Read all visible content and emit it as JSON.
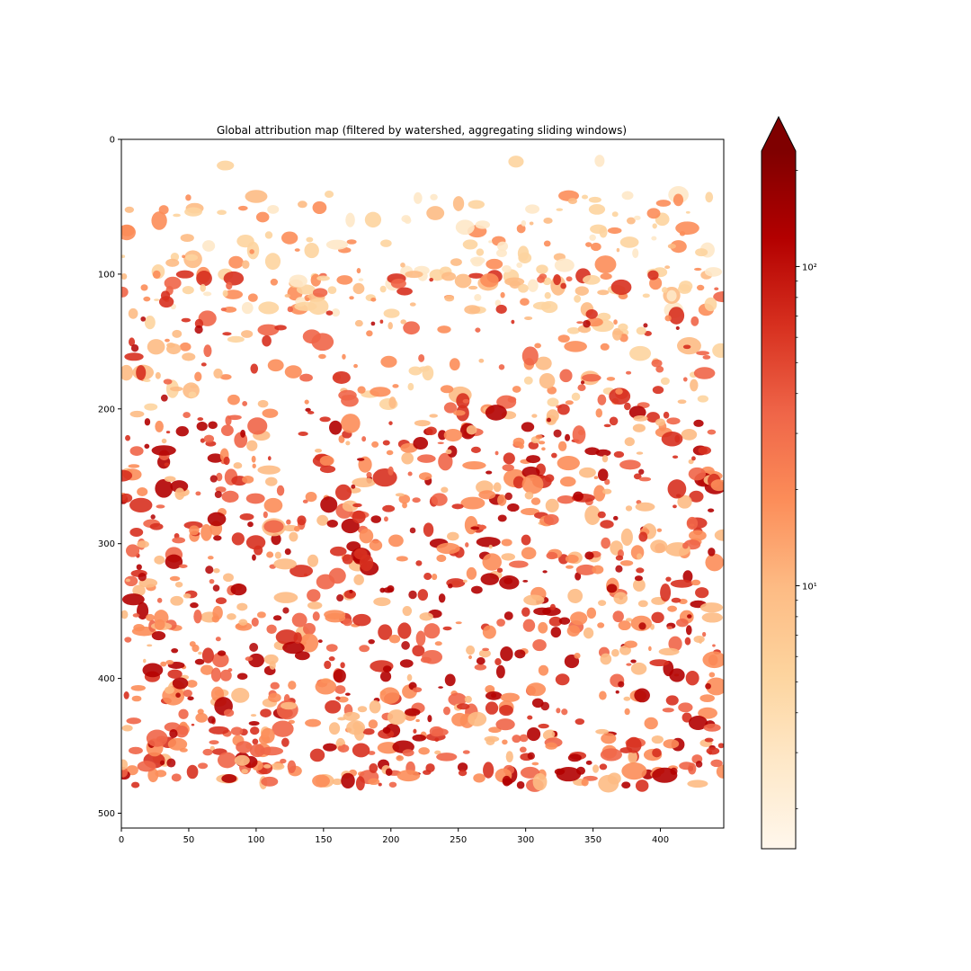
{
  "chart_data": {
    "type": "heatmap",
    "title": "Global attribution map (filtered by watershed, aggregating sliding windows)",
    "xlabel": "",
    "ylabel": "",
    "xlim": [
      0,
      447
    ],
    "ylim": [
      511,
      0
    ],
    "xticks": [
      0,
      50,
      100,
      150,
      200,
      250,
      300,
      350,
      400
    ],
    "yticks": [
      0,
      100,
      200,
      300,
      400,
      500
    ],
    "colormap": "OrRd",
    "colormap_colors": [
      "#fff7ec",
      "#fee8c8",
      "#fdd49e",
      "#fdbb84",
      "#fc8d59",
      "#ef6548",
      "#d7301f",
      "#b30000",
      "#7f0000"
    ],
    "colorbar": {
      "scale": "log",
      "range": [
        1.5,
        230
      ],
      "extend": "max",
      "major_ticks": [
        10,
        100
      ],
      "major_tick_labels": [
        "10¹",
        "10²"
      ],
      "minor_ticks": [
        2,
        3,
        4,
        5,
        6,
        7,
        8,
        9,
        20,
        30,
        40,
        50,
        60,
        70,
        80,
        90,
        200
      ]
    },
    "grid": false,
    "legend": "none"
  }
}
